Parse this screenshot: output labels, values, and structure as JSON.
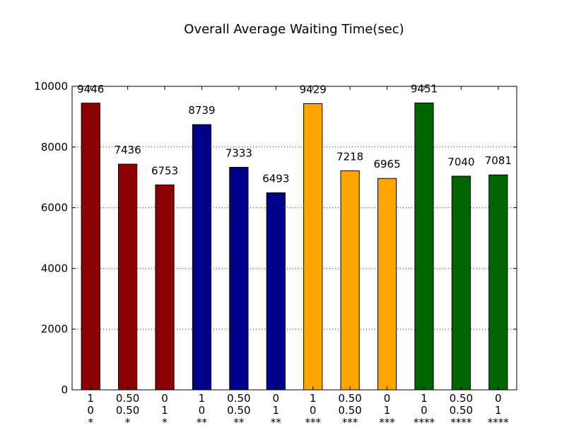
{
  "chart_data": {
    "type": "bar",
    "title": "Overall Average Waiting Time(sec)",
    "xlabel": "",
    "ylabel": "",
    "ylim": [
      0,
      10000
    ],
    "yticks": [
      0,
      2000,
      4000,
      6000,
      8000,
      10000
    ],
    "grid": true,
    "categories": [
      [
        "1",
        "0",
        "*"
      ],
      [
        "0.50",
        "0.50",
        "*"
      ],
      [
        "0",
        "1",
        "*"
      ],
      [
        "1",
        "0",
        "**"
      ],
      [
        "0.50",
        "0.50",
        "**"
      ],
      [
        "0",
        "1",
        "**"
      ],
      [
        "1",
        "0",
        "***"
      ],
      [
        "0.50",
        "0.50",
        "***"
      ],
      [
        "0",
        "1",
        "***"
      ],
      [
        "1",
        "0",
        "****"
      ],
      [
        "0.50",
        "0.50",
        "****"
      ],
      [
        "0",
        "1",
        "****"
      ]
    ],
    "values": [
      9446,
      7436,
      6753,
      8739,
      7333,
      6493,
      9429,
      7218,
      6965,
      9451,
      7040,
      7081
    ],
    "data_labels": [
      "9446",
      "7436",
      "6753",
      "8739",
      "7333",
      "6493",
      "9429",
      "7218",
      "6965",
      "9451",
      "7040",
      "7081"
    ],
    "colors": [
      "#8b0000",
      "#8b0000",
      "#8b0000",
      "#00008b",
      "#00008b",
      "#00008b",
      "#ffa500",
      "#ffa500",
      "#ffa500",
      "#006400",
      "#006400",
      "#006400"
    ]
  }
}
